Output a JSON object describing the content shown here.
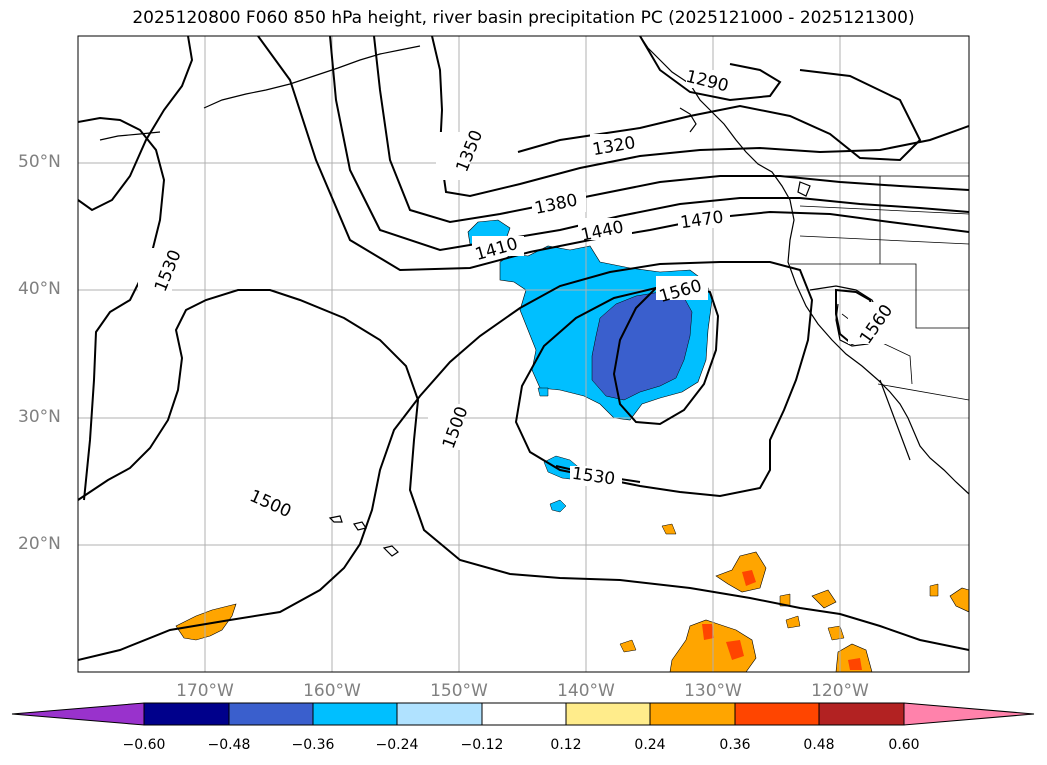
{
  "title": "2025120800 F060 850 hPa height, river basin precipitation PC (2025121000 - 2025121300)",
  "map": {
    "projection": "cylindrical",
    "lat_ticks": [
      "50°N",
      "40°N",
      "30°N",
      "20°N"
    ],
    "lon_ticks": [
      "170°W",
      "160°W",
      "150°W",
      "140°W",
      "130°W",
      "120°W"
    ],
    "grid": true,
    "contour_variable": "850 hPa height",
    "contour_labels": [
      "1290",
      "1320",
      "1350",
      "1380",
      "1410",
      "1440",
      "1470",
      "1500",
      "1500",
      "1530",
      "1530",
      "1560",
      "1560"
    ]
  },
  "colorbar": {
    "ticks": [
      "−0.60",
      "−0.48",
      "−0.36",
      "−0.24",
      "−0.12",
      "0.12",
      "0.24",
      "0.36",
      "0.48",
      "0.60"
    ],
    "colors": [
      "#9932cc",
      "#00008b",
      "#3a5fcd",
      "#00bfff",
      "#b0e2ff",
      "#ffffff",
      "#ffec8b",
      "#ffa500",
      "#ff4500",
      "#b22222",
      "#ff82ab"
    ],
    "extend": "both"
  }
}
